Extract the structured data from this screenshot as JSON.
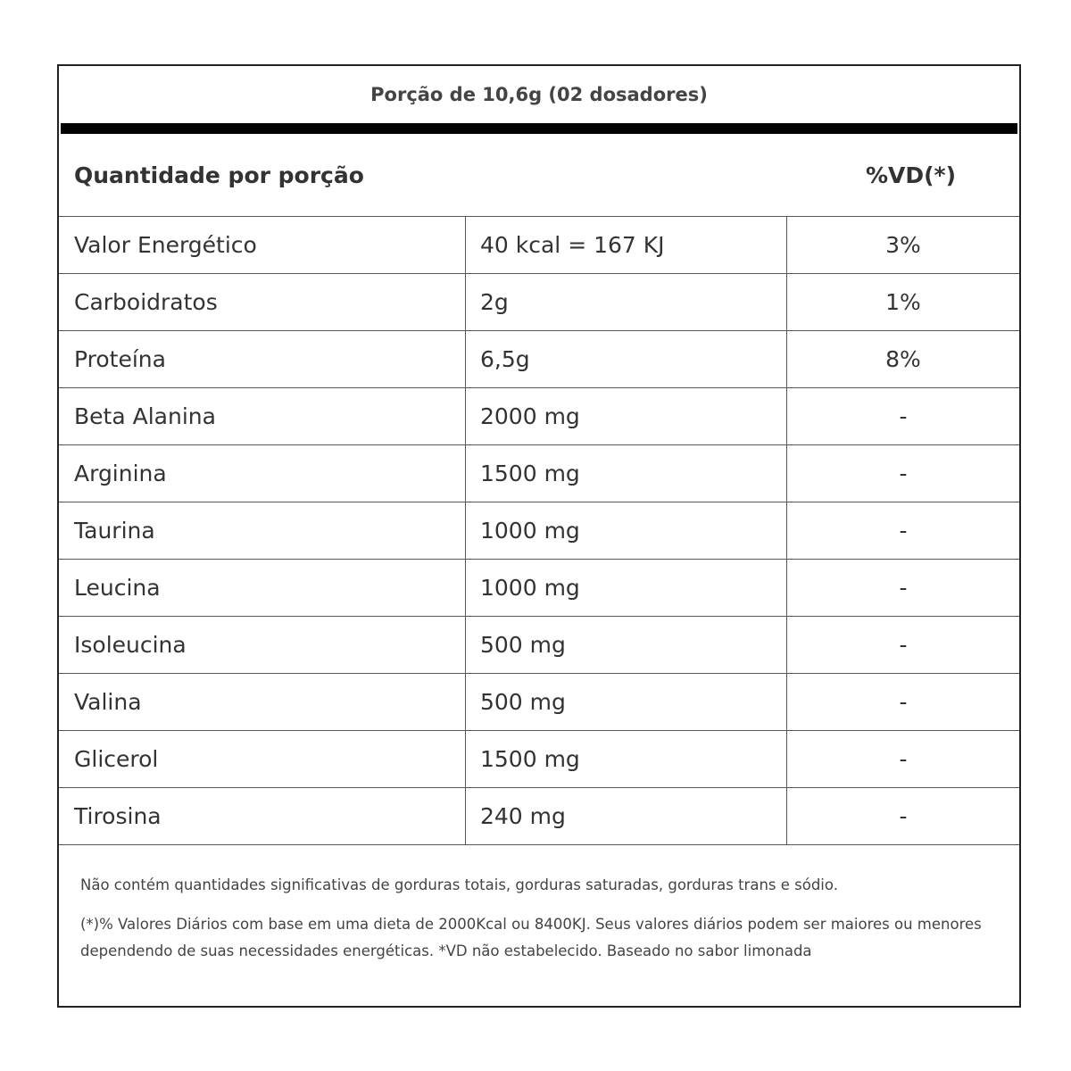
{
  "serving": "Porção de 10,6g (02 dosadores)",
  "header": {
    "quantity_label": "Quantidade por porção",
    "dv_label": "%VD(*)"
  },
  "rows": [
    {
      "name": "Valor Energético",
      "amount": "40 kcal = 167 KJ",
      "dv": "3%"
    },
    {
      "name": "Carboidratos",
      "amount": "2g",
      "dv": "1%"
    },
    {
      "name": "Proteína",
      "amount": "6,5g",
      "dv": "8%"
    },
    {
      "name": "Beta Alanina",
      "amount": "2000 mg",
      "dv": "-"
    },
    {
      "name": "Arginina",
      "amount": "1500 mg",
      "dv": "-"
    },
    {
      "name": "Taurina",
      "amount": "1000 mg",
      "dv": "-"
    },
    {
      "name": "Leucina",
      "amount": "1000 mg",
      "dv": "-"
    },
    {
      "name": "Isoleucina",
      "amount": "500 mg",
      "dv": "-"
    },
    {
      "name": "Valina",
      "amount": "500 mg",
      "dv": "-"
    },
    {
      "name": "Glicerol",
      "amount": "1500 mg",
      "dv": "-"
    },
    {
      "name": "Tirosina",
      "amount": "240 mg",
      "dv": "-"
    }
  ],
  "footer": {
    "note1": "Não contém quantidades significativas de gorduras totais, gorduras saturadas, gorduras trans e sódio.",
    "note2": "(*)% Valores Diários com base em uma dieta de 2000Kcal ou 8400KJ. Seus valores diários podem ser maiores ou menores dependendo de suas necessidades energéticas. *VD não estabelecido. Baseado no sabor limonada"
  }
}
